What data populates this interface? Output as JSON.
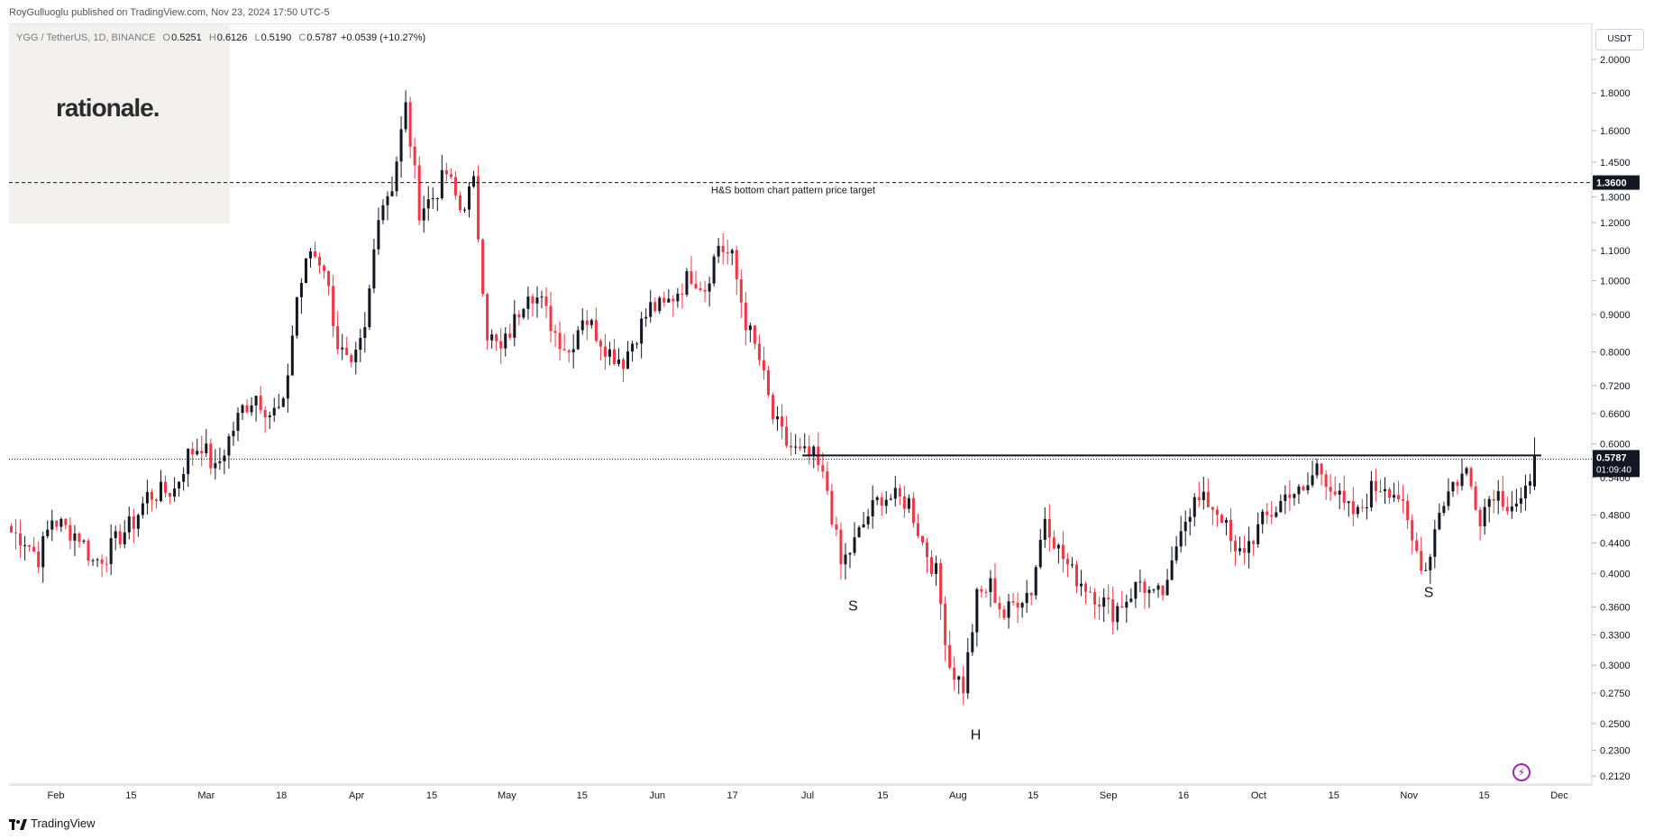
{
  "header": {
    "publisher": "RoyGulluoglu published on TradingView.com, Nov 23, 2024 17:50 UTC-5"
  },
  "symbol_line": {
    "symbol": "YGG / TetherUS, 1D, BINANCE",
    "open_label": "O",
    "open": "0.5251",
    "high_label": "H",
    "high": "0.6126",
    "low_label": "L",
    "low": "0.5190",
    "close_label": "C",
    "close": "0.5787",
    "change": "+0.0539 (+10.27%)"
  },
  "logo": {
    "text": "rationale."
  },
  "price_axis": {
    "currency": "USDT",
    "ticks": [
      "2.0000",
      "1.8000",
      "1.6000",
      "1.4500",
      "1.3000",
      "1.2000",
      "1.1000",
      "1.0000",
      "0.9000",
      "0.8000",
      "0.7200",
      "0.6600",
      "0.6000",
      "0.5400",
      "0.4800",
      "0.4400",
      "0.4000",
      "0.3600",
      "0.3300",
      "0.3000",
      "0.2750",
      "0.2500",
      "0.2300",
      "0.2120"
    ]
  },
  "chart_data": {
    "type": "candlestick",
    "title": "YGG / TetherUS, 1D, BINANCE",
    "y_scale": "log",
    "ylim": [
      0.208,
      2.08
    ],
    "x_ticks": [
      "Feb",
      "15",
      "Mar",
      "18",
      "Apr",
      "15",
      "May",
      "15",
      "Jun",
      "17",
      "Jul",
      "15",
      "Aug",
      "15",
      "Sep",
      "16",
      "Oct",
      "15",
      "Nov",
      "15",
      "Dec"
    ],
    "anchors": [
      0.455,
      0.445,
      0.42,
      0.475,
      0.46,
      0.45,
      0.415,
      0.425,
      0.45,
      0.47,
      0.51,
      0.515,
      0.52,
      0.58,
      0.6,
      0.55,
      0.61,
      0.67,
      0.7,
      0.66,
      0.67,
      0.95,
      1.1,
      1.05,
      0.82,
      0.75,
      0.85,
      1.25,
      1.35,
      1.72,
      1.25,
      1.3,
      1.4,
      1.25,
      1.35,
      0.85,
      0.8,
      0.88,
      0.98,
      0.93,
      0.85,
      0.8,
      0.9,
      0.85,
      0.8,
      0.78,
      0.85,
      0.92,
      0.92,
      0.97,
      1.02,
      0.98,
      1.12,
      1.07,
      0.88,
      0.78,
      0.65,
      0.6,
      0.58,
      0.575,
      0.52,
      0.41,
      0.44,
      0.48,
      0.51,
      0.505,
      0.5,
      0.44,
      0.4,
      0.3,
      0.28,
      0.37,
      0.385,
      0.35,
      0.37,
      0.38,
      0.48,
      0.43,
      0.4,
      0.385,
      0.37,
      0.355,
      0.37,
      0.39,
      0.37,
      0.38,
      0.47,
      0.5,
      0.5,
      0.48,
      0.42,
      0.44,
      0.47,
      0.49,
      0.52,
      0.51,
      0.56,
      0.53,
      0.49,
      0.48,
      0.52,
      0.53,
      0.51,
      0.44,
      0.405,
      0.49,
      0.53,
      0.55,
      0.48,
      0.52,
      0.5,
      0.5,
      0.53
    ],
    "last": {
      "open": 0.5251,
      "high": 0.6126,
      "low": 0.519,
      "close": 0.5787,
      "change": 0.0539,
      "change_pct": 10.27
    },
    "neckline": 0.5787,
    "target": 1.36,
    "annotations": [
      "H&S bottom chart pattern price target",
      "S",
      "H",
      "S"
    ],
    "current_price_label": "0.5787",
    "countdown": "01:09:40",
    "target_label": "1.3600",
    "up_color": "#131722",
    "down_color": "#f23645"
  },
  "footer": {
    "brand": "TradingView"
  }
}
